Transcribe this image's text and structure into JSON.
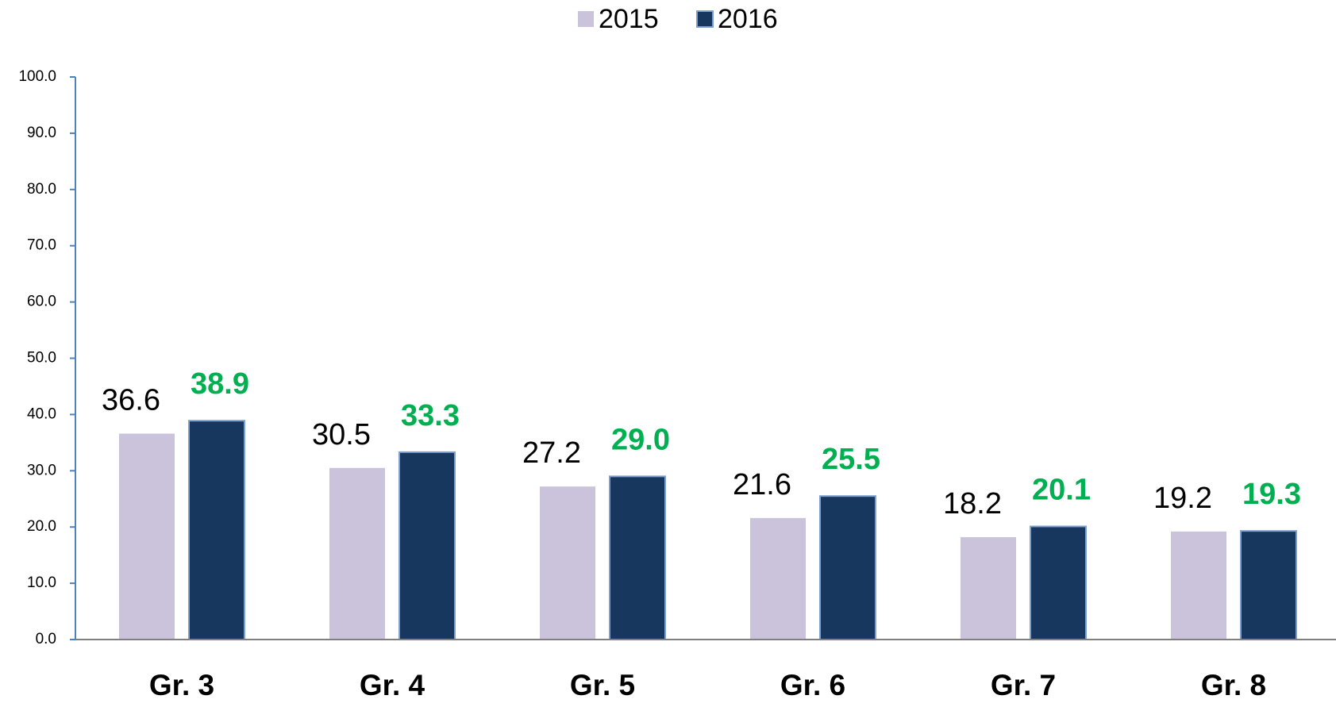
{
  "chart_data": {
    "type": "bar",
    "categories": [
      "Gr. 3",
      "Gr. 4",
      "Gr. 5",
      "Gr. 6",
      "Gr. 7",
      "Gr. 8"
    ],
    "series": [
      {
        "name": "2015",
        "color": "#cbc3dc",
        "values": [
          36.6,
          30.5,
          27.2,
          21.6,
          18.2,
          19.2
        ]
      },
      {
        "name": "2016",
        "color": "#17375e",
        "values": [
          38.9,
          33.3,
          29.0,
          25.5,
          20.1,
          19.3
        ],
        "value_labels": [
          "38.9",
          "33.3",
          "29.0",
          "25.5",
          "20.1",
          "19.3"
        ]
      }
    ],
    "ylim": [
      0,
      100
    ],
    "yticks": [
      {
        "value": 0,
        "label": "0.0"
      },
      {
        "value": 10,
        "label": "10.0"
      },
      {
        "value": 20,
        "label": "20.0"
      },
      {
        "value": 30,
        "label": "30.0"
      },
      {
        "value": 40,
        "label": "40.0"
      },
      {
        "value": 50,
        "label": "50.0"
      },
      {
        "value": 60,
        "label": "60.0"
      },
      {
        "value": 70,
        "label": "70.0"
      },
      {
        "value": 80,
        "label": "80.0"
      },
      {
        "value": 90,
        "label": "90.0"
      },
      {
        "value": 100,
        "label": "100.0"
      }
    ],
    "legend": "top"
  }
}
